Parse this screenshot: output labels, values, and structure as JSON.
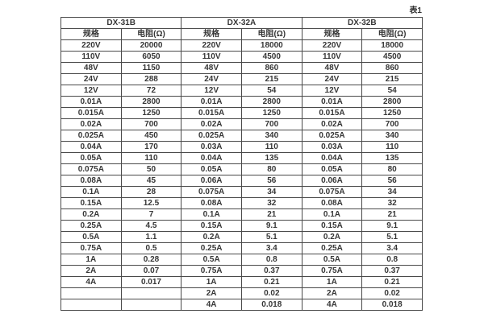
{
  "caption": "表1",
  "table": {
    "groups": [
      {
        "name": "DX-31B",
        "spec_header": "规格",
        "res_header": "电阻(Ω)",
        "rows": [
          [
            "220V",
            "20000"
          ],
          [
            "110V",
            "6050"
          ],
          [
            "48V",
            "1150"
          ],
          [
            "24V",
            "288"
          ],
          [
            "12V",
            "72"
          ],
          [
            "0.01A",
            "2800"
          ],
          [
            "0.015A",
            "1250"
          ],
          [
            "0.02A",
            "700"
          ],
          [
            "0.025A",
            "450"
          ],
          [
            "0.04A",
            "170"
          ],
          [
            "0.05A",
            "110"
          ],
          [
            "0.075A",
            "50"
          ],
          [
            "0.08A",
            "45"
          ],
          [
            "0.1A",
            "28"
          ],
          [
            "0.15A",
            "12.5"
          ],
          [
            "0.2A",
            "7"
          ],
          [
            "0.25A",
            "4.5"
          ],
          [
            "0.5A",
            "1.1"
          ],
          [
            "0.75A",
            "0.5"
          ],
          [
            "1A",
            "0.28"
          ],
          [
            "2A",
            "0.07"
          ],
          [
            "4A",
            "0.017"
          ],
          [
            "",
            ""
          ],
          [
            "",
            ""
          ]
        ]
      },
      {
        "name": "DX-32A",
        "spec_header": "规格",
        "res_header": "电阻(Ω)",
        "rows": [
          [
            "220V",
            "18000"
          ],
          [
            "110V",
            "4500"
          ],
          [
            "48V",
            "860"
          ],
          [
            "24V",
            "215"
          ],
          [
            "12V",
            "54"
          ],
          [
            "0.01A",
            "2800"
          ],
          [
            "0.015A",
            "1250"
          ],
          [
            "0.02A",
            "700"
          ],
          [
            "0.025A",
            "340"
          ],
          [
            "0.03A",
            "110"
          ],
          [
            "0.04A",
            "135"
          ],
          [
            "0.05A",
            "80"
          ],
          [
            "0.06A",
            "56"
          ],
          [
            "0.075A",
            "34"
          ],
          [
            "0.08A",
            "32"
          ],
          [
            "0.1A",
            "21"
          ],
          [
            "0.15A",
            "9.1"
          ],
          [
            "0.2A",
            "5.1"
          ],
          [
            "0.25A",
            "3.4"
          ],
          [
            "0.5A",
            "0.8"
          ],
          [
            "0.75A",
            "0.37"
          ],
          [
            "1A",
            "0.21"
          ],
          [
            "2A",
            "0.02"
          ],
          [
            "4A",
            "0.018"
          ]
        ]
      },
      {
        "name": "DX-32B",
        "spec_header": "规格",
        "res_header": "电阻(Ω)",
        "rows": [
          [
            "220V",
            "18000"
          ],
          [
            "110V",
            "4500"
          ],
          [
            "48V",
            "860"
          ],
          [
            "24V",
            "215"
          ],
          [
            "12V",
            "54"
          ],
          [
            "0.01A",
            "2800"
          ],
          [
            "0.015A",
            "1250"
          ],
          [
            "0.02A",
            "700"
          ],
          [
            "0.025A",
            "340"
          ],
          [
            "0.03A",
            "110"
          ],
          [
            "0.04A",
            "135"
          ],
          [
            "0.05A",
            "80"
          ],
          [
            "0.06A",
            "56"
          ],
          [
            "0.075A",
            "34"
          ],
          [
            "0.08A",
            "32"
          ],
          [
            "0.1A",
            "21"
          ],
          [
            "0.15A",
            "9.1"
          ],
          [
            "0.2A",
            "5.1"
          ],
          [
            "0.25A",
            "3.4"
          ],
          [
            "0.5A",
            "0.8"
          ],
          [
            "0.75A",
            "0.37"
          ],
          [
            "1A",
            "0.21"
          ],
          [
            "2A",
            "0.02"
          ],
          [
            "4A",
            "0.018"
          ]
        ]
      }
    ]
  },
  "colors": {
    "text": "#363636",
    "border": "#4a4a4a",
    "background": "#ffffff"
  }
}
